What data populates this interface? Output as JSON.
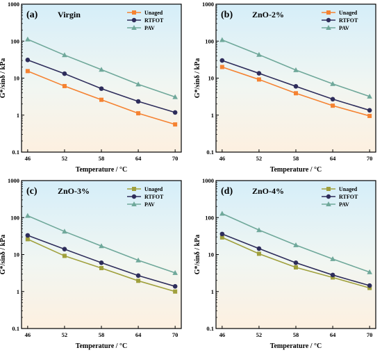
{
  "chart_data": [
    {
      "type": "line",
      "panel_label": "(a)",
      "title": "Virgin",
      "xlabel": "Temperature / °C",
      "ylabel": "G*/sinδ / kPa",
      "x": [
        46,
        52,
        58,
        64,
        70
      ],
      "xlim": [
        45,
        71
      ],
      "ylim": [
        0.1,
        1000
      ],
      "yscale": "log",
      "yticks": [
        "0.1",
        "1",
        "10",
        "100",
        "1000"
      ],
      "legend_position": "top-right",
      "series": [
        {
          "name": "Unaged",
          "color": "#f58231",
          "marker": "square",
          "values": [
            15.5,
            6.1,
            2.6,
            1.12,
            0.56
          ]
        },
        {
          "name": "RTFOT",
          "color": "#2e2d5b",
          "marker": "circle",
          "values": [
            31,
            13.2,
            5.2,
            2.35,
            1.18
          ]
        },
        {
          "name": "PAV",
          "color": "#6fa89a",
          "marker": "triangle",
          "values": [
            112,
            42,
            17,
            6.8,
            3.1
          ]
        }
      ]
    },
    {
      "type": "line",
      "panel_label": "(b)",
      "title": "ZnO-2%",
      "xlabel": "Temperature / °C",
      "ylabel": "G*/sinδ / kPa",
      "x": [
        46,
        52,
        58,
        64,
        70
      ],
      "xlim": [
        45,
        71
      ],
      "ylim": [
        0.1,
        1000
      ],
      "yscale": "log",
      "yticks": [
        "0.1",
        "1",
        "10",
        "100",
        "1000"
      ],
      "legend_position": "top-right",
      "series": [
        {
          "name": "Unaged",
          "color": "#f58231",
          "marker": "square",
          "values": [
            20,
            9.2,
            3.9,
            1.8,
            0.95
          ]
        },
        {
          "name": "RTFOT",
          "color": "#2e2d5b",
          "marker": "circle",
          "values": [
            30,
            13.5,
            6,
            2.7,
            1.35
          ]
        },
        {
          "name": "PAV",
          "color": "#6fa89a",
          "marker": "triangle",
          "values": [
            108,
            43,
            16.5,
            7,
            3.2
          ]
        }
      ]
    },
    {
      "type": "line",
      "panel_label": "(c)",
      "title": "ZnO-3%",
      "xlabel": "Temperature / °C",
      "ylabel": "G*/sinδ / kPa",
      "x": [
        46,
        52,
        58,
        64,
        70
      ],
      "xlim": [
        45,
        71
      ],
      "ylim": [
        0.1,
        1000
      ],
      "yscale": "log",
      "yticks": [
        "0.1",
        "1",
        "10",
        "100",
        "1000"
      ],
      "legend_position": "top-right",
      "series": [
        {
          "name": "Unaged",
          "color": "#a0a03c",
          "marker": "square",
          "values": [
            26,
            9.2,
            4.3,
            1.95,
            1.0
          ]
        },
        {
          "name": "RTFOT",
          "color": "#2e2d5b",
          "marker": "circle",
          "values": [
            33,
            14,
            6,
            2.7,
            1.38
          ]
        },
        {
          "name": "PAV",
          "color": "#6fa89a",
          "marker": "triangle",
          "values": [
            112,
            42,
            17,
            7,
            3.2
          ]
        }
      ]
    },
    {
      "type": "line",
      "panel_label": "(d)",
      "title": "ZnO-4%",
      "xlabel": "Temperature / °C",
      "ylabel": "G*/sinδ / kPa",
      "x": [
        46,
        52,
        58,
        64,
        70
      ],
      "xlim": [
        45,
        71
      ],
      "ylim": [
        0.1,
        1000
      ],
      "yscale": "log",
      "yticks": [
        "0.1",
        "1",
        "10",
        "100",
        "1000"
      ],
      "legend_position": "top-right",
      "series": [
        {
          "name": "Unaged",
          "color": "#a0a03c",
          "marker": "square",
          "values": [
            29,
            10.5,
            4.5,
            2.4,
            1.25
          ]
        },
        {
          "name": "RTFOT",
          "color": "#2e2d5b",
          "marker": "circle",
          "values": [
            36,
            14.5,
            6,
            2.8,
            1.45
          ]
        },
        {
          "name": "PAV",
          "color": "#6fa89a",
          "marker": "triangle",
          "values": [
            128,
            46,
            18,
            7.6,
            3.35
          ]
        }
      ]
    }
  ]
}
